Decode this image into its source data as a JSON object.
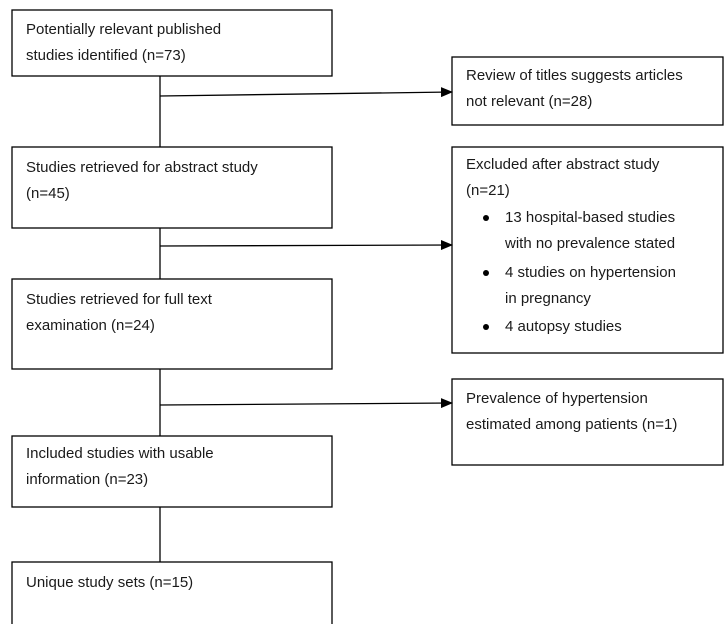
{
  "nodes": [
    {
      "lines": [
        "Potentially relevant published",
        "studies identified (n=73)"
      ]
    },
    {
      "lines": [
        "Studies retrieved for abstract study",
        "(n=45)"
      ]
    },
    {
      "lines": [
        "Studies retrieved for full text",
        "examination (n=24)"
      ]
    },
    {
      "lines": [
        "Included studies with usable",
        "information (n=23)"
      ]
    },
    {
      "lines": [
        "Unique study sets (n=15)"
      ]
    }
  ],
  "exclusions": [
    {
      "lines": [
        "Review of titles suggests articles",
        "not relevant (n=28)"
      ]
    },
    {
      "lines": [
        "Excluded after abstract study",
        "(n=21)"
      ],
      "bullets": [
        {
          "lines": [
            "13 hospital-based studies",
            "with no prevalence stated"
          ]
        },
        {
          "lines": [
            "4 studies on hypertension",
            "in pregnancy"
          ]
        },
        {
          "lines": [
            "4 autopsy studies"
          ]
        }
      ]
    },
    {
      "lines": [
        "Prevalence of hypertension",
        "estimated among patients (n=1)"
      ]
    }
  ]
}
